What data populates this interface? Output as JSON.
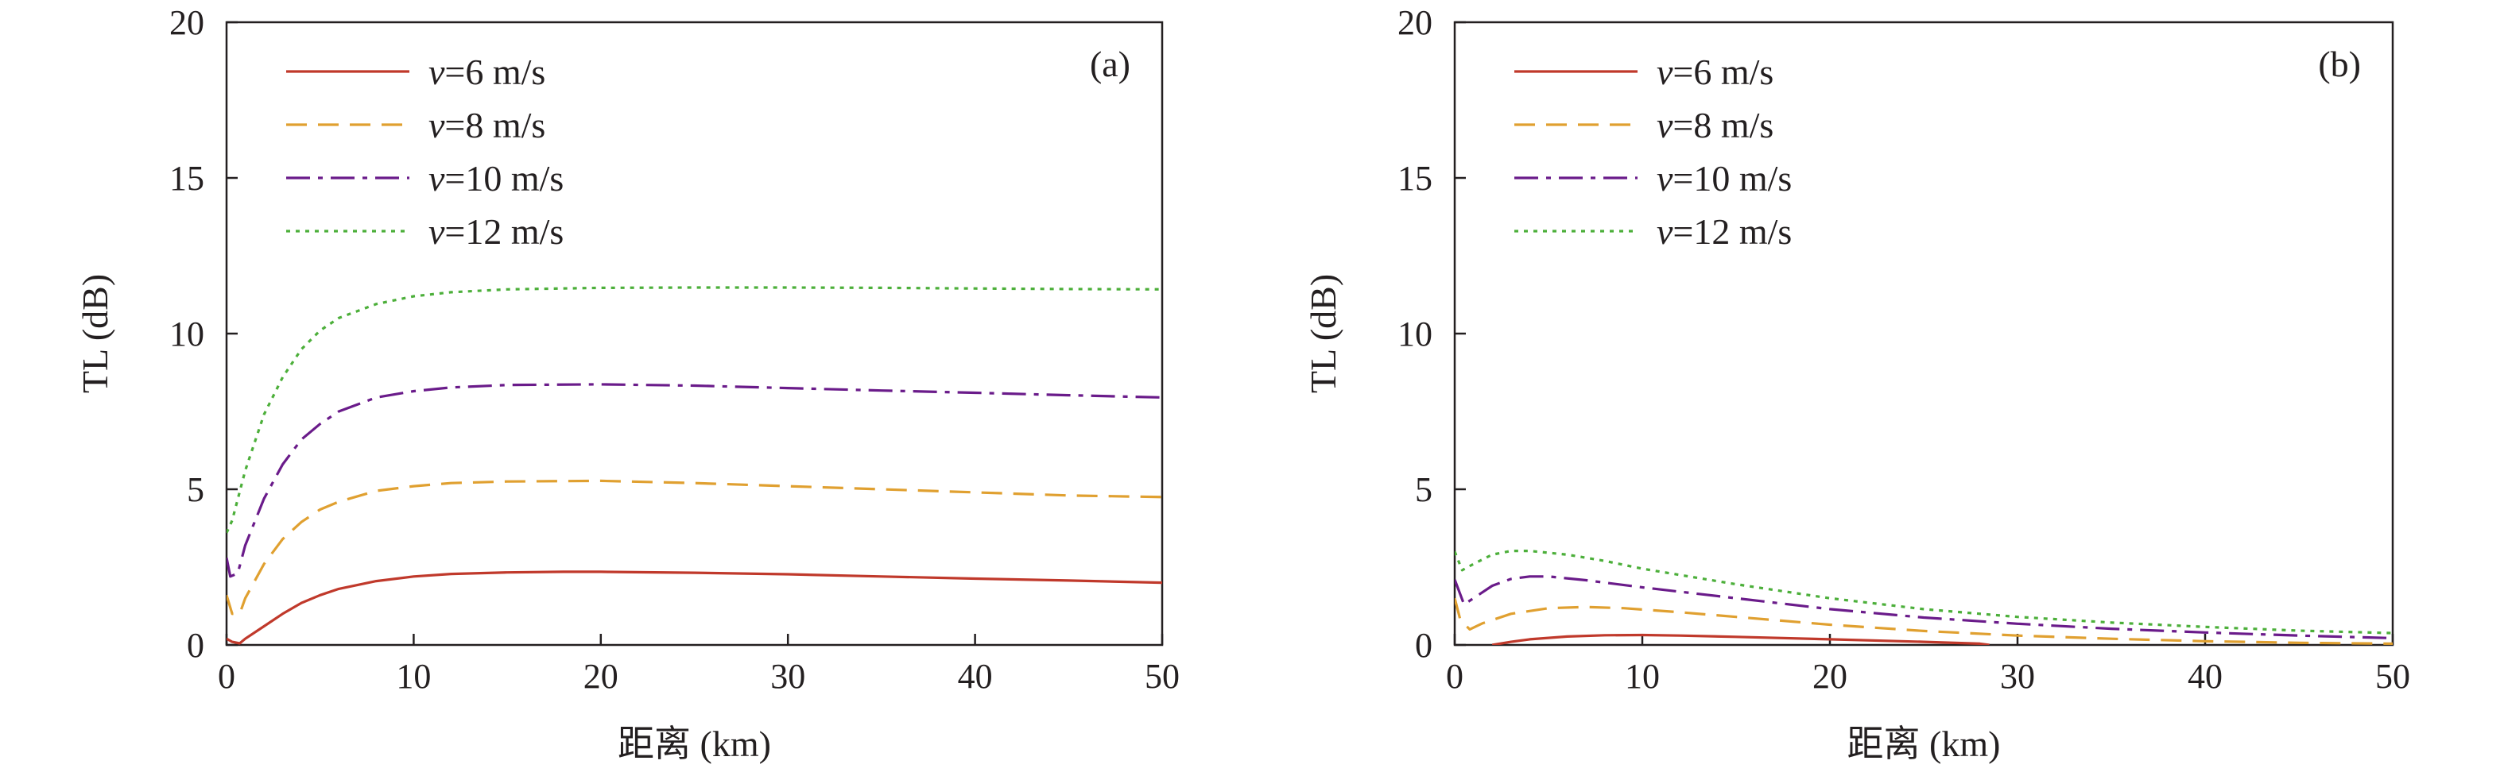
{
  "colors": {
    "v6": "#c0392b",
    "v8": "#e0a030",
    "v10": "#6a1b8a",
    "v12": "#4caf3a",
    "axis": "#231f20"
  },
  "chart_data": [
    {
      "type": "line",
      "panel_label": "(a)",
      "xlabel": "距离 (km)",
      "ylabel": "TL (dB)",
      "xlim": [
        0,
        50
      ],
      "ylim": [
        0,
        20
      ],
      "xticks": [
        0,
        10,
        20,
        30,
        40,
        50
      ],
      "yticks": [
        0,
        5,
        10,
        15,
        20
      ],
      "grid": false,
      "legend_position": "top-left",
      "series": [
        {
          "name_prefix": "v",
          "name_suffix": "=6 m/s",
          "color_key": "v6",
          "dash": "solid",
          "points": [
            [
              0,
              0.2
            ],
            [
              0.3,
              0.1
            ],
            [
              0.7,
              0.05
            ],
            [
              1,
              0.2
            ],
            [
              2,
              0.6
            ],
            [
              3,
              1.0
            ],
            [
              4,
              1.35
            ],
            [
              5,
              1.6
            ],
            [
              6,
              1.8
            ],
            [
              8,
              2.05
            ],
            [
              10,
              2.2
            ],
            [
              12,
              2.28
            ],
            [
              15,
              2.33
            ],
            [
              18,
              2.35
            ],
            [
              20,
              2.35
            ],
            [
              25,
              2.32
            ],
            [
              30,
              2.27
            ],
            [
              35,
              2.2
            ],
            [
              40,
              2.13
            ],
            [
              45,
              2.07
            ],
            [
              50,
              2.0
            ]
          ]
        },
        {
          "name_prefix": "v",
          "name_suffix": "=8 m/s",
          "color_key": "v8",
          "dash": "dashed",
          "points": [
            [
              0,
              1.6
            ],
            [
              0.3,
              1.0
            ],
            [
              0.7,
              1.0
            ],
            [
              1,
              1.5
            ],
            [
              2,
              2.6
            ],
            [
              3,
              3.4
            ],
            [
              4,
              3.95
            ],
            [
              5,
              4.35
            ],
            [
              6,
              4.6
            ],
            [
              8,
              4.95
            ],
            [
              10,
              5.1
            ],
            [
              12,
              5.2
            ],
            [
              15,
              5.25
            ],
            [
              20,
              5.27
            ],
            [
              25,
              5.2
            ],
            [
              30,
              5.1
            ],
            [
              35,
              5.0
            ],
            [
              40,
              4.9
            ],
            [
              45,
              4.8
            ],
            [
              50,
              4.75
            ]
          ]
        },
        {
          "name_prefix": "v",
          "name_suffix": "=10 m/s",
          "color_key": "v10",
          "dash": "dashdot",
          "points": [
            [
              0,
              2.8
            ],
            [
              0.2,
              2.2
            ],
            [
              0.6,
              2.3
            ],
            [
              1,
              3.2
            ],
            [
              2,
              4.7
            ],
            [
              3,
              5.8
            ],
            [
              4,
              6.6
            ],
            [
              5,
              7.1
            ],
            [
              6,
              7.5
            ],
            [
              8,
              7.95
            ],
            [
              10,
              8.15
            ],
            [
              12,
              8.27
            ],
            [
              15,
              8.35
            ],
            [
              20,
              8.37
            ],
            [
              25,
              8.33
            ],
            [
              30,
              8.25
            ],
            [
              35,
              8.17
            ],
            [
              40,
              8.1
            ],
            [
              45,
              8.02
            ],
            [
              50,
              7.95
            ]
          ]
        },
        {
          "name_prefix": "v",
          "name_suffix": "=12 m/s",
          "color_key": "v12",
          "dash": "dotted",
          "points": [
            [
              0,
              3.6
            ],
            [
              0.3,
              4.0
            ],
            [
              1,
              5.6
            ],
            [
              2,
              7.4
            ],
            [
              3,
              8.6
            ],
            [
              4,
              9.5
            ],
            [
              5,
              10.1
            ],
            [
              6,
              10.5
            ],
            [
              8,
              10.95
            ],
            [
              10,
              11.2
            ],
            [
              12,
              11.33
            ],
            [
              15,
              11.42
            ],
            [
              20,
              11.47
            ],
            [
              25,
              11.48
            ],
            [
              30,
              11.48
            ],
            [
              35,
              11.47
            ],
            [
              40,
              11.45
            ],
            [
              45,
              11.43
            ],
            [
              50,
              11.42
            ]
          ]
        }
      ]
    },
    {
      "type": "line",
      "panel_label": "(b)",
      "xlabel": "距离 (km)",
      "ylabel": "TL (dB)",
      "xlim": [
        0,
        50
      ],
      "ylim": [
        0,
        20
      ],
      "xticks": [
        0,
        10,
        20,
        30,
        40,
        50
      ],
      "yticks": [
        0,
        5,
        10,
        15,
        20
      ],
      "grid": false,
      "legend_position": "top-left",
      "series": [
        {
          "name_prefix": "v",
          "name_suffix": "=6 m/s",
          "color_key": "v6",
          "dash": "solid",
          "points": [
            [
              2,
              0
            ],
            [
              3,
              0.1
            ],
            [
              4,
              0.18
            ],
            [
              6,
              0.27
            ],
            [
              8,
              0.31
            ],
            [
              10,
              0.32
            ],
            [
              12,
              0.3
            ],
            [
              15,
              0.26
            ],
            [
              20,
              0.18
            ],
            [
              25,
              0.1
            ],
            [
              28,
              0.04
            ],
            [
              28.5,
              0
            ]
          ]
        },
        {
          "name_prefix": "v",
          "name_suffix": "=8 m/s",
          "color_key": "v8",
          "dash": "dashed",
          "points": [
            [
              0,
              1.5
            ],
            [
              0.3,
              0.8
            ],
            [
              0.8,
              0.5
            ],
            [
              1.5,
              0.7
            ],
            [
              3,
              1.0
            ],
            [
              5,
              1.18
            ],
            [
              7,
              1.22
            ],
            [
              9,
              1.18
            ],
            [
              12,
              1.05
            ],
            [
              15,
              0.9
            ],
            [
              20,
              0.65
            ],
            [
              25,
              0.45
            ],
            [
              30,
              0.3
            ],
            [
              35,
              0.2
            ],
            [
              40,
              0.12
            ],
            [
              45,
              0.07
            ],
            [
              50,
              0.04
            ]
          ]
        },
        {
          "name_prefix": "v",
          "name_suffix": "=10 m/s",
          "color_key": "v10",
          "dash": "dashdot",
          "points": [
            [
              0,
              2.1
            ],
            [
              0.5,
              1.3
            ],
            [
              1,
              1.5
            ],
            [
              2,
              1.9
            ],
            [
              3,
              2.12
            ],
            [
              4,
              2.2
            ],
            [
              5,
              2.2
            ],
            [
              7,
              2.08
            ],
            [
              10,
              1.85
            ],
            [
              15,
              1.5
            ],
            [
              20,
              1.15
            ],
            [
              25,
              0.88
            ],
            [
              30,
              0.68
            ],
            [
              35,
              0.52
            ],
            [
              40,
              0.4
            ],
            [
              45,
              0.3
            ],
            [
              50,
              0.22
            ]
          ]
        },
        {
          "name_prefix": "v",
          "name_suffix": "=12 m/s",
          "color_key": "v12",
          "dash": "dotted",
          "points": [
            [
              0,
              3.0
            ],
            [
              0.4,
              2.4
            ],
            [
              1,
              2.6
            ],
            [
              2,
              2.9
            ],
            [
              3,
              3.02
            ],
            [
              4,
              3.02
            ],
            [
              6,
              2.9
            ],
            [
              8,
              2.7
            ],
            [
              10,
              2.45
            ],
            [
              15,
              1.95
            ],
            [
              20,
              1.5
            ],
            [
              25,
              1.15
            ],
            [
              30,
              0.9
            ],
            [
              35,
              0.72
            ],
            [
              40,
              0.58
            ],
            [
              45,
              0.46
            ],
            [
              50,
              0.38
            ]
          ]
        }
      ]
    }
  ]
}
